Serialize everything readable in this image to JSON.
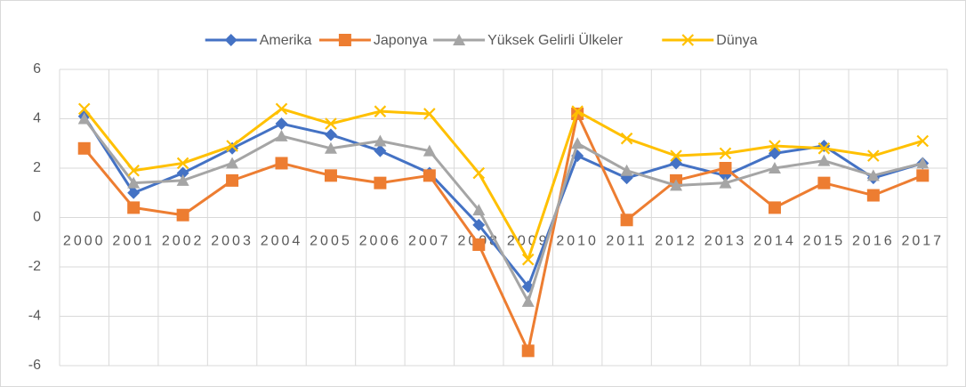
{
  "chart_data": {
    "type": "line",
    "categories": [
      "2000",
      "2001",
      "2002",
      "2003",
      "2004",
      "2005",
      "2006",
      "2007",
      "2008",
      "2009",
      "2010",
      "2011",
      "2012",
      "2013",
      "2014",
      "2015",
      "2016",
      "2017"
    ],
    "series": [
      {
        "name": "Amerika",
        "color": "#4472c4",
        "marker": "diamond",
        "values": [
          4.1,
          1.0,
          1.8,
          2.8,
          3.8,
          3.35,
          2.7,
          1.8,
          -0.3,
          -2.8,
          2.5,
          1.6,
          2.2,
          1.7,
          2.6,
          2.9,
          1.6,
          2.2
        ]
      },
      {
        "name": "Japonya",
        "color": "#ed7d31",
        "marker": "square",
        "values": [
          2.8,
          0.4,
          0.1,
          1.5,
          2.2,
          1.7,
          1.4,
          1.7,
          -1.1,
          -5.4,
          4.2,
          -0.1,
          1.5,
          2.0,
          0.4,
          1.4,
          0.9,
          1.7
        ]
      },
      {
        "name": "Yüksek Gelirli Ülkeler",
        "color": "#a5a5a5",
        "marker": "triangle",
        "values": [
          4.0,
          1.4,
          1.5,
          2.2,
          3.3,
          2.8,
          3.1,
          2.7,
          0.3,
          -3.4,
          3.0,
          1.9,
          1.3,
          1.4,
          2.0,
          2.3,
          1.7,
          2.2
        ]
      },
      {
        "name": "Dünya",
        "color": "#ffc000",
        "marker": "x",
        "values": [
          4.4,
          1.9,
          2.2,
          2.9,
          4.4,
          3.8,
          4.3,
          4.2,
          1.8,
          -1.7,
          4.3,
          3.2,
          2.5,
          2.6,
          2.9,
          2.8,
          2.5,
          3.1
        ]
      }
    ],
    "ylim": [
      -6,
      6
    ],
    "yticks": [
      -6,
      -4,
      -2,
      0,
      2,
      4,
      6
    ],
    "grid": true,
    "legend": "top"
  }
}
